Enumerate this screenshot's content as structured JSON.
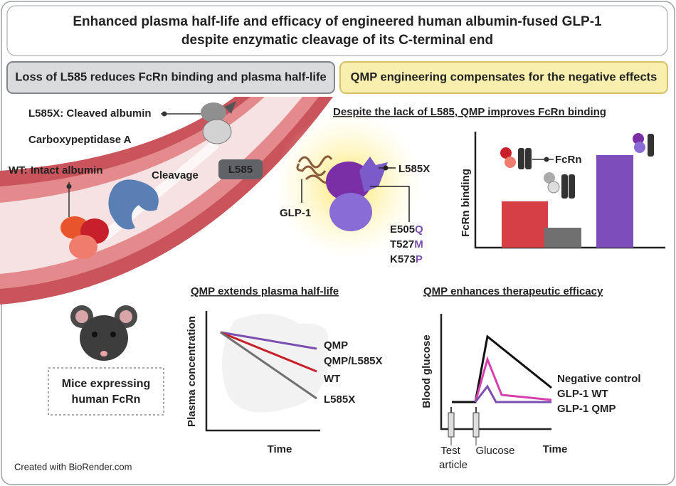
{
  "title": {
    "lines": [
      "Enhanced plasma half-life and efficacy of engineered human albumin-fused GLP-1",
      "despite enzymatic cleavage of its C-terminal end"
    ]
  },
  "headers": {
    "left": "Loss of L585 reduces FcRn binding and plasma half-life",
    "right": "QMP engineering compensates for the negative effects"
  },
  "vessel": {
    "cleaved": "L585X: Cleaved albumin",
    "enzyme": "Carboxypeptidase A",
    "intact": "WT: Intact albumin",
    "cleavage": "Cleavage",
    "fragment": "L585"
  },
  "structure": {
    "subtitle": "Despite the lack of L585, QMP improves FcRn binding",
    "site": "L585X",
    "glp1": "GLP-1",
    "mutations": [
      [
        "E505",
        "Q"
      ],
      [
        "T527",
        "M"
      ],
      [
        "K573",
        "P"
      ]
    ]
  },
  "fcrn_chart": {
    "receptor": "FcRn",
    "y_label": "FcRn binding"
  },
  "mouse": {
    "lines": [
      "Mice expressing",
      "human FcRn"
    ]
  },
  "half_life": {
    "subtitle": "QMP extends plasma half-life",
    "y_label": "Plasma concentration",
    "x_label": "Time",
    "lines": [
      "QMP",
      "QMP/L585X",
      "WT",
      "L585X"
    ]
  },
  "efficacy": {
    "subtitle": "QMP enhances therapeutic efficacy",
    "y_label": "Blood glucose",
    "x_label": "Time",
    "legend": [
      "Negative control",
      "GLP-1 WT",
      "GLP-1 QMP"
    ],
    "test_article": [
      "Test",
      "article"
    ],
    "glucose": "Glucose"
  },
  "footer": "Created with BioRender.com"
}
